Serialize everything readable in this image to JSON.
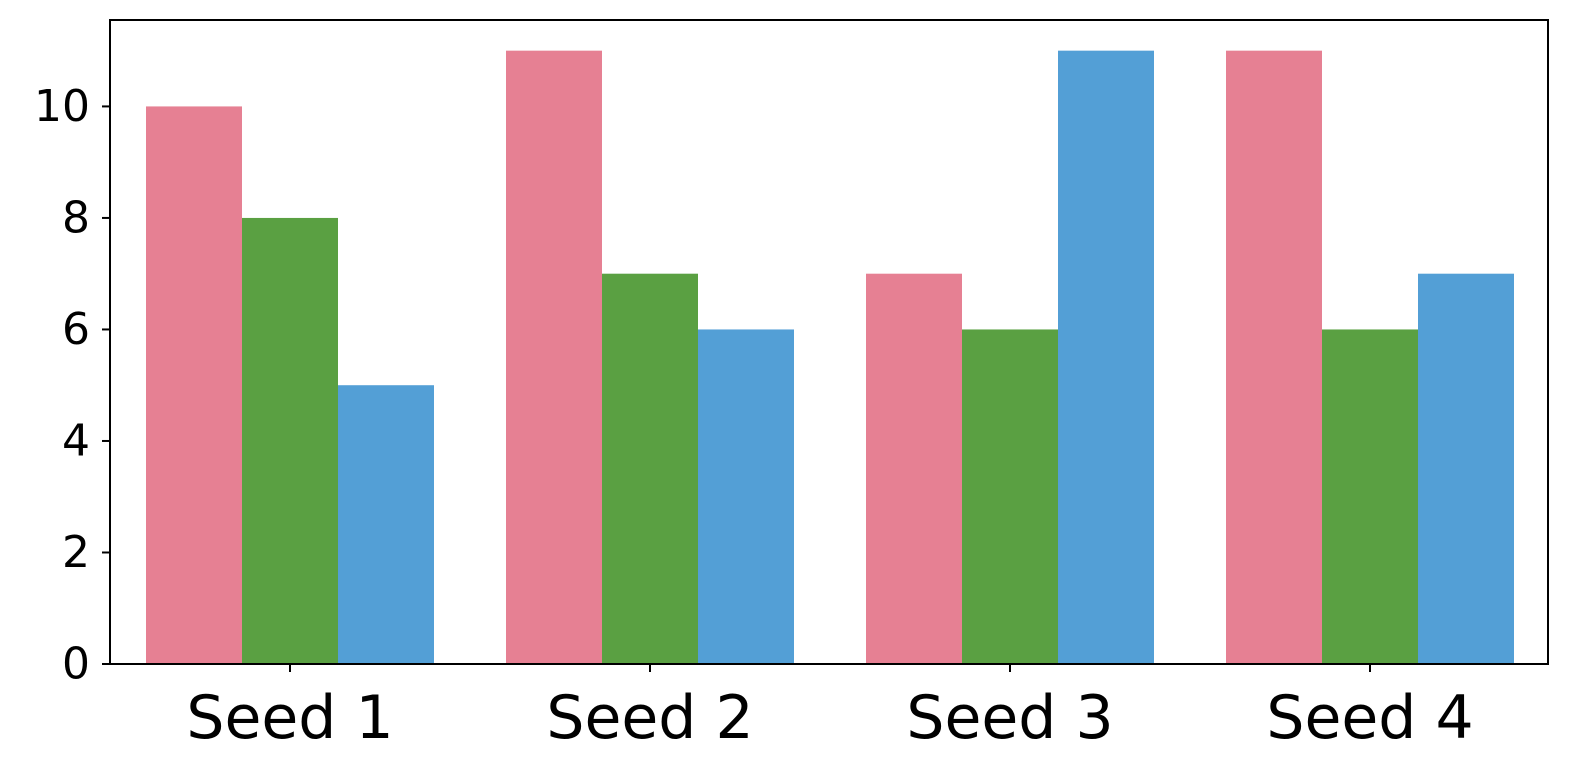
{
  "chart_data": {
    "type": "bar",
    "title": "",
    "xlabel": "",
    "ylabel": "",
    "categories": [
      "Seed 1",
      "Seed 2",
      "Seed 3",
      "Seed 4"
    ],
    "series": [
      {
        "color": "#E68093",
        "values": [
          10,
          11,
          7,
          11
        ]
      },
      {
        "color": "#5AA042",
        "values": [
          8,
          7,
          6,
          6
        ]
      },
      {
        "color": "#539FD6",
        "values": [
          5,
          6,
          11,
          7
        ]
      }
    ],
    "ylim": [
      0,
      11.55
    ],
    "yticks": [
      0,
      2,
      4,
      6,
      8,
      10
    ],
    "grid": false,
    "legend": "none"
  }
}
